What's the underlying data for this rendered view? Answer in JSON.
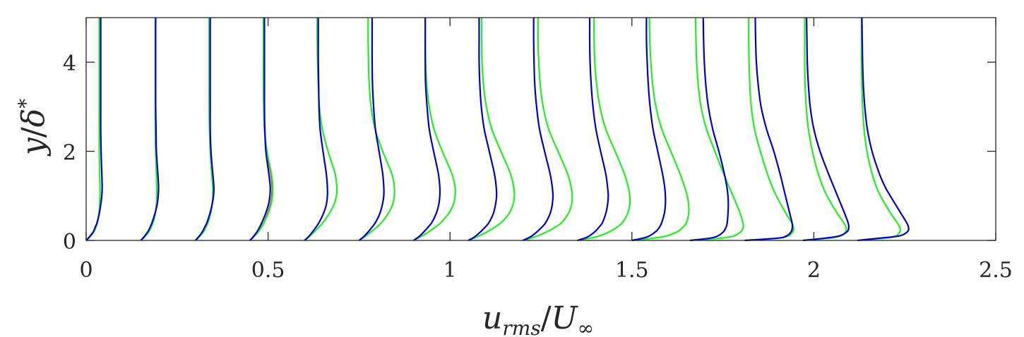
{
  "chart_data": {
    "type": "line",
    "xlabel": "u_rms/U_∞",
    "ylabel": "y/δ*",
    "xlim": [
      0,
      2.5
    ],
    "ylim": [
      0,
      5
    ],
    "x_ticks": [
      0,
      0.5,
      1,
      1.5,
      2,
      2.5
    ],
    "x_tick_labels": [
      "0",
      "0.5",
      "1",
      "1.5",
      "2",
      "2.5"
    ],
    "y_ticks": [
      0,
      2,
      4
    ],
    "y_tick_labels": [
      "0",
      "2",
      "4"
    ],
    "grid": false,
    "legend": "none",
    "colors": {
      "blue": "#0000cc",
      "green": "#22ee22",
      "red": "#dd2200",
      "axis": "#262626"
    },
    "profile_y": [
      0,
      0.05,
      0.1,
      0.2,
      0.3,
      0.4,
      0.6,
      0.8,
      1.0,
      1.2,
      1.5,
      2.0,
      2.5,
      3.0,
      3.5,
      4.0,
      4.5,
      5.0
    ],
    "series": [
      {
        "color": "blue",
        "profiles": [
          {
            "x0": 0.0,
            "x": [
              0.0,
              0.006,
              0.011,
              0.02,
              0.025,
              0.03,
              0.036,
              0.04,
              0.043,
              0.044,
              0.043,
              0.041,
              0.04,
              0.04,
              0.04,
              0.04,
              0.04,
              0.04
            ]
          },
          {
            "x0": 0.15,
            "x": [
              0.15,
              0.156,
              0.161,
              0.17,
              0.176,
              0.181,
              0.189,
              0.195,
              0.198,
              0.199,
              0.197,
              0.193,
              0.192,
              0.191,
              0.191,
              0.191,
              0.191,
              0.191
            ]
          },
          {
            "x0": 0.3,
            "x": [
              0.3,
              0.306,
              0.311,
              0.32,
              0.326,
              0.332,
              0.34,
              0.346,
              0.35,
              0.351,
              0.348,
              0.343,
              0.341,
              0.341,
              0.341,
              0.341,
              0.341,
              0.341
            ]
          },
          {
            "x0": 0.45,
            "x": [
              0.45,
              0.456,
              0.461,
              0.47,
              0.477,
              0.483,
              0.493,
              0.501,
              0.505,
              0.506,
              0.502,
              0.494,
              0.491,
              0.49,
              0.49,
              0.49,
              0.49,
              0.49
            ]
          },
          {
            "x0": 0.6,
            "x": [
              0.6,
              0.607,
              0.613,
              0.623,
              0.632,
              0.64,
              0.652,
              0.66,
              0.663,
              0.663,
              0.66,
              0.651,
              0.643,
              0.64,
              0.639,
              0.638,
              0.638,
              0.638
            ]
          },
          {
            "x0": 0.75,
            "x": [
              0.75,
              0.758,
              0.765,
              0.776,
              0.786,
              0.795,
              0.807,
              0.814,
              0.818,
              0.818,
              0.815,
              0.805,
              0.795,
              0.79,
              0.787,
              0.786,
              0.786,
              0.786
            ]
          },
          {
            "x0": 0.9,
            "x": [
              0.9,
              0.909,
              0.917,
              0.929,
              0.94,
              0.95,
              0.962,
              0.969,
              0.972,
              0.972,
              0.968,
              0.955,
              0.943,
              0.937,
              0.933,
              0.932,
              0.932,
              0.932
            ]
          },
          {
            "x0": 1.05,
            "x": [
              1.05,
              1.062,
              1.071,
              1.085,
              1.097,
              1.107,
              1.119,
              1.125,
              1.128,
              1.127,
              1.122,
              1.108,
              1.094,
              1.086,
              1.082,
              1.08,
              1.08,
              1.08
            ]
          },
          {
            "x0": 1.2,
            "x": [
              1.2,
              1.214,
              1.225,
              1.24,
              1.253,
              1.263,
              1.275,
              1.281,
              1.283,
              1.281,
              1.275,
              1.26,
              1.246,
              1.238,
              1.233,
              1.231,
              1.23,
              1.23
            ]
          },
          {
            "x0": 1.35,
            "x": [
              1.35,
              1.37,
              1.383,
              1.399,
              1.41,
              1.419,
              1.428,
              1.433,
              1.435,
              1.433,
              1.428,
              1.414,
              1.401,
              1.393,
              1.388,
              1.385,
              1.384,
              1.384
            ]
          },
          {
            "x0": 1.5,
            "x": [
              1.5,
              1.53,
              1.548,
              1.566,
              1.576,
              1.582,
              1.589,
              1.592,
              1.592,
              1.59,
              1.584,
              1.571,
              1.558,
              1.55,
              1.545,
              1.542,
              1.54,
              1.54
            ]
          },
          {
            "x0": 1.66,
            "x": [
              1.66,
              1.714,
              1.736,
              1.752,
              1.759,
              1.762,
              1.764,
              1.765,
              1.764,
              1.761,
              1.754,
              1.739,
              1.722,
              1.71,
              1.703,
              1.699,
              1.697,
              1.696
            ]
          },
          {
            "x0": 1.81,
            "x": [
              1.81,
              1.9,
              1.925,
              1.938,
              1.941,
              1.94,
              1.934,
              1.928,
              1.922,
              1.916,
              1.907,
              1.89,
              1.87,
              1.855,
              1.847,
              1.842,
              1.84,
              1.839
            ]
          },
          {
            "x0": 1.97,
            "x": [
              1.97,
              2.03,
              2.07,
              2.092,
              2.096,
              2.094,
              2.085,
              2.075,
              2.065,
              2.055,
              2.04,
              2.017,
              2.0,
              1.99,
              1.985,
              1.982,
              1.981,
              1.98
            ]
          },
          {
            "x0": 2.12,
            "x": [
              2.12,
              2.18,
              2.235,
              2.258,
              2.26,
              2.255,
              2.24,
              2.225,
              2.21,
              2.196,
              2.18,
              2.16,
              2.147,
              2.14,
              2.136,
              2.134,
              2.133,
              2.132
            ]
          }
        ]
      },
      {
        "color": "green",
        "profiles": [
          {
            "x0": 0.0,
            "x": [
              0.0,
              0.007,
              0.013,
              0.022,
              0.027,
              0.031,
              0.035,
              0.037,
              0.038,
              0.038,
              0.037,
              0.036,
              0.036,
              0.036,
              0.036,
              0.036,
              0.036,
              0.036
            ]
          },
          {
            "x0": 0.15,
            "x": [
              0.15,
              0.157,
              0.163,
              0.173,
              0.179,
              0.184,
              0.19,
              0.193,
              0.194,
              0.194,
              0.193,
              0.191,
              0.19,
              0.19,
              0.19,
              0.19,
              0.19,
              0.19
            ]
          },
          {
            "x0": 0.3,
            "x": [
              0.3,
              0.307,
              0.313,
              0.323,
              0.329,
              0.335,
              0.342,
              0.346,
              0.348,
              0.348,
              0.345,
              0.341,
              0.339,
              0.338,
              0.338,
              0.338,
              0.338,
              0.338
            ]
          },
          {
            "x0": 0.45,
            "x": [
              0.45,
              0.457,
              0.463,
              0.474,
              0.482,
              0.489,
              0.5,
              0.508,
              0.512,
              0.513,
              0.509,
              0.497,
              0.49,
              0.488,
              0.487,
              0.487,
              0.487,
              0.487
            ]
          },
          {
            "x0": 0.6,
            "x": [
              0.6,
              0.608,
              0.615,
              0.628,
              0.64,
              0.651,
              0.668,
              0.681,
              0.688,
              0.689,
              0.684,
              0.665,
              0.649,
              0.641,
              0.638,
              0.636,
              0.635,
              0.635
            ]
          },
          {
            "x0": 0.75,
            "x": [
              0.75,
              0.759,
              0.768,
              0.784,
              0.799,
              0.812,
              0.83,
              0.842,
              0.847,
              0.847,
              0.84,
              0.815,
              0.794,
              0.783,
              0.778,
              0.776,
              0.775,
              0.775
            ]
          },
          {
            "x0": 0.9,
            "x": [
              0.9,
              0.912,
              0.923,
              0.943,
              0.96,
              0.975,
              0.996,
              1.009,
              1.014,
              1.014,
              1.005,
              0.979,
              0.956,
              0.943,
              0.936,
              0.933,
              0.932,
              0.932
            ]
          },
          {
            "x0": 1.05,
            "x": [
              1.05,
              1.066,
              1.08,
              1.104,
              1.124,
              1.141,
              1.162,
              1.173,
              1.177,
              1.175,
              1.166,
              1.14,
              1.115,
              1.1,
              1.092,
              1.088,
              1.087,
              1.087
            ]
          },
          {
            "x0": 1.2,
            "x": [
              1.2,
              1.222,
              1.24,
              1.268,
              1.29,
              1.307,
              1.325,
              1.334,
              1.336,
              1.333,
              1.323,
              1.297,
              1.271,
              1.256,
              1.248,
              1.244,
              1.242,
              1.242
            ]
          },
          {
            "x0": 1.35,
            "x": [
              1.35,
              1.385,
              1.41,
              1.44,
              1.46,
              1.474,
              1.488,
              1.494,
              1.494,
              1.49,
              1.479,
              1.454,
              1.428,
              1.412,
              1.403,
              1.398,
              1.396,
              1.396
            ]
          },
          {
            "x0": 1.5,
            "x": [
              1.5,
              1.56,
              1.595,
              1.626,
              1.641,
              1.65,
              1.656,
              1.656,
              1.652,
              1.645,
              1.632,
              1.607,
              1.582,
              1.566,
              1.557,
              1.552,
              1.549,
              1.548
            ]
          },
          {
            "x0": 1.66,
            "x": [
              1.66,
              1.745,
              1.78,
              1.8,
              1.806,
              1.805,
              1.798,
              1.788,
              1.778,
              1.767,
              1.752,
              1.728,
              1.705,
              1.69,
              1.682,
              1.678,
              1.676,
              1.675
            ]
          },
          {
            "x0": 1.81,
            "x": [
              1.81,
              1.9,
              1.93,
              1.943,
              1.944,
              1.939,
              1.924,
              1.91,
              1.897,
              1.886,
              1.872,
              1.853,
              1.837,
              1.828,
              1.824,
              1.822,
              1.821,
              1.821
            ]
          },
          {
            "x0": 1.97,
            "x": [
              1.97,
              2.04,
              2.073,
              2.088,
              2.088,
              2.082,
              2.065,
              2.05,
              2.036,
              2.025,
              2.012,
              1.996,
              1.985,
              1.979,
              1.976,
              1.975,
              1.975,
              1.975
            ]
          },
          {
            "x0": 2.12,
            "x": [
              2.12,
              2.195,
              2.225,
              2.237,
              2.236,
              2.229,
              2.212,
              2.197,
              2.183,
              2.172,
              2.16,
              2.146,
              2.138,
              2.134,
              2.132,
              2.131,
              2.131,
              2.131
            ]
          }
        ]
      },
      {
        "color": "red",
        "profiles": [
          {
            "x0": 0.45,
            "x": [
              0.45,
              0.457,
              0.463,
              0.473,
              0.481,
              0.488,
              0.498,
              0.506,
              0.51,
              0.511,
              0.507,
              0.496,
              0.491,
              0.489,
              0.488,
              0.488,
              0.488,
              0.488
            ]
          }
        ]
      }
    ]
  },
  "axes": {
    "xlabel_parts": {
      "main": "u",
      "sub": "rms",
      "slash": "/",
      "main2": "U",
      "sub2": "∞"
    },
    "ylabel_parts": {
      "main": "y",
      "slash": "/",
      "main2": "δ",
      "sup": "*"
    }
  }
}
